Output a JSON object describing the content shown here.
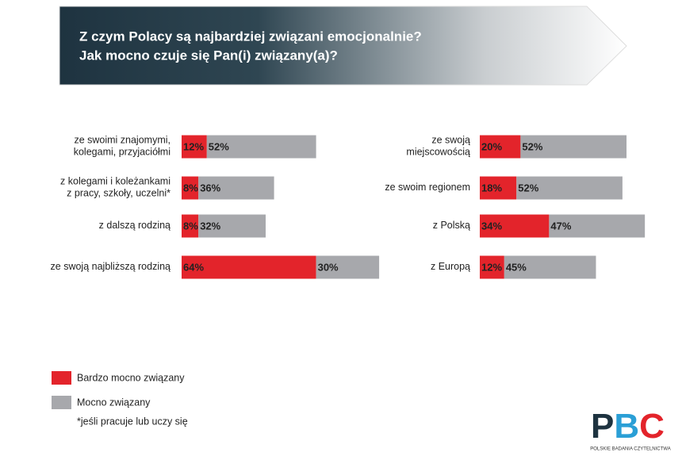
{
  "header": {
    "title": [
      "Z czym Polacy są najbardziej związani emocjonalnie?",
      "Jak mocno czuje się Pan(i) związany(a)?"
    ]
  },
  "chart_data": [
    {
      "type": "bar",
      "orientation": "horizontal",
      "stacked": true,
      "xlim": [
        0,
        100
      ],
      "categories": [
        "ze swoimi znajomymi,\nkolegami, przyjaciółmi",
        "z kolegami i koleżankami\nz pracy, szkoły, uczelni*",
        "z dalszą rodziną",
        "ze swoją najbliższą rodziną"
      ],
      "series": [
        {
          "name": "Bardzo mocno związany",
          "color": "#e3242b",
          "values": [
            12,
            8,
            8,
            64
          ],
          "value_labels": [
            "12%",
            "8%",
            "8%",
            "64%"
          ]
        },
        {
          "name": "Mocno związany",
          "color": "#a7a8ac",
          "values": [
            52,
            36,
            32,
            30
          ],
          "value_labels": [
            "52%",
            "36%",
            "32%",
            "30%"
          ]
        }
      ]
    },
    {
      "type": "bar",
      "orientation": "horizontal",
      "stacked": true,
      "xlim": [
        0,
        100
      ],
      "categories": [
        "ze swoją\nmiejscowością",
        "ze swoim regionem",
        "z Polską",
        "z Europą"
      ],
      "series": [
        {
          "color": "#e3242b",
          "values": [
            20,
            18,
            34,
            12
          ],
          "value_labels": [
            "20%",
            "18%",
            "34%",
            "12%"
          ]
        },
        {
          "color": "#a7a8ac",
          "values": [
            52,
            52,
            47,
            45
          ],
          "value_labels": [
            "52%",
            "52%",
            "47%",
            "45%"
          ]
        }
      ]
    }
  ],
  "footnote": "*jeśli pracuje lub uczy się",
  "logo": {
    "text": "PBC",
    "subtitle": "POLSKIE BADANIA CZYTELNICTWA"
  }
}
